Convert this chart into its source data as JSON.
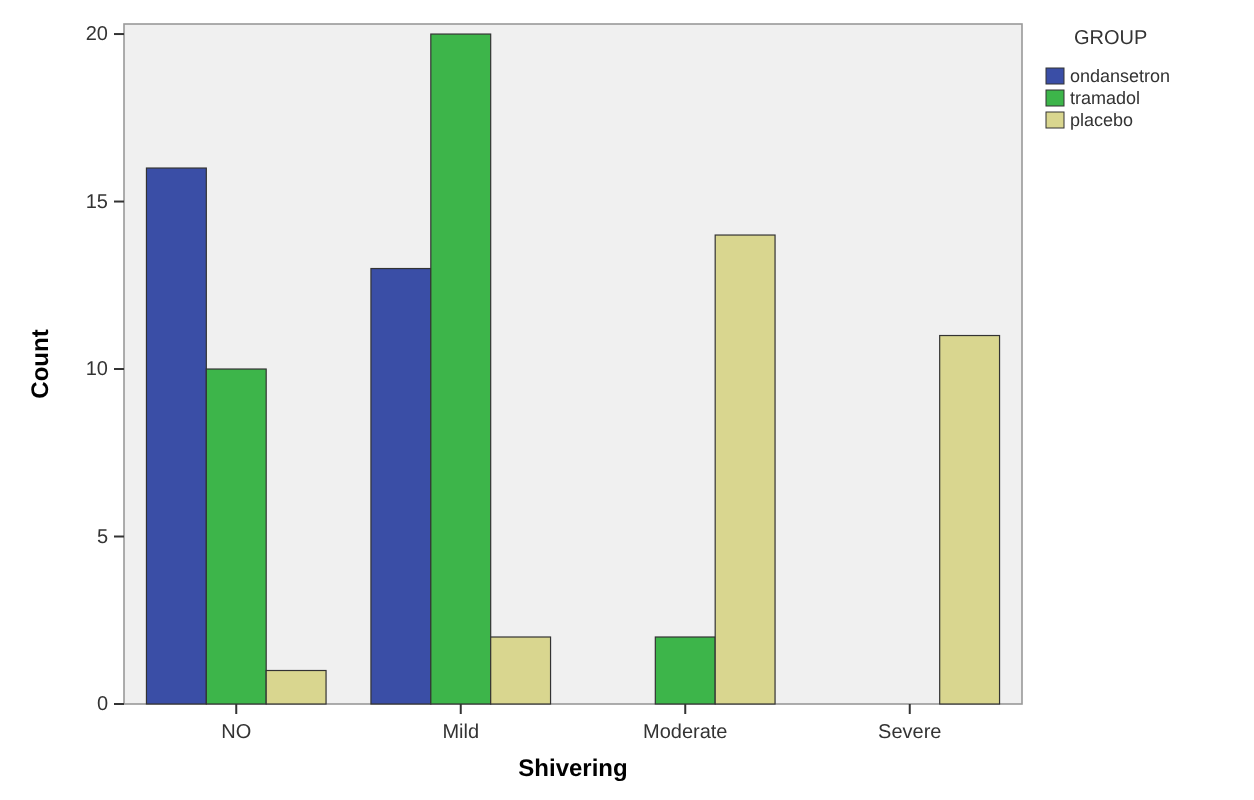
{
  "chart_data": {
    "type": "bar",
    "xlabel": "Shivering",
    "ylabel": "Count",
    "legend_title": "GROUP",
    "legend": "top right",
    "grid": false,
    "categories": [
      "NO",
      "Mild",
      "Moderate",
      "Severe"
    ],
    "series": [
      {
        "name": "ondansetron",
        "color": "#3a4ea6",
        "values": [
          16,
          13,
          0,
          0
        ]
      },
      {
        "name": "tramadol",
        "color": "#3db54a",
        "values": [
          10,
          20,
          2,
          0
        ]
      },
      {
        "name": "placebo",
        "color": "#d9d68f",
        "values": [
          1,
          2,
          14,
          11
        ]
      }
    ],
    "ylim": [
      0,
      20.3
    ],
    "yticks": [
      0,
      5,
      10,
      15,
      20
    ]
  }
}
